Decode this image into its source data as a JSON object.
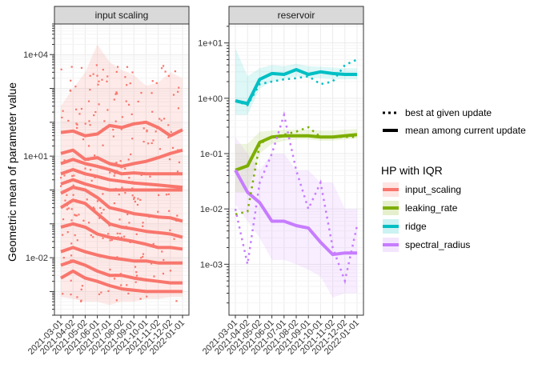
{
  "chart_data": {
    "type": "line",
    "ylabel": "Geometric mean of parameter value",
    "xlabel": "",
    "y_scale": "log",
    "x_ticks": [
      "2021-03-01",
      "2021-04-02",
      "2021-05-02",
      "2021-06-01",
      "2021-07-01",
      "2021-08-02",
      "2021-09-01",
      "2021-10-01",
      "2021-11-02",
      "2021-12-02",
      "2022-01-01"
    ],
    "panels": [
      {
        "strip": "input scaling",
        "y_ticks": [
          {
            "label": "1e-02",
            "value": 0.01
          },
          {
            "label": "1e+01",
            "value": 10
          },
          {
            "label": "1e+04",
            "value": 10000
          }
        ],
        "ylim": [
          0.0002,
          80000
        ],
        "band": {
          "lower": [
            0.0007,
            0.0006,
            0.0005,
            0.0005,
            0.0004,
            0.0005,
            0.0005,
            0.0006,
            0.0006,
            0.0007,
            0.0007
          ],
          "upper": [
            300,
            1000,
            3000,
            20000,
            6000,
            3500,
            2500,
            1200,
            1500,
            3000,
            2000
          ]
        },
        "series": [
          {
            "values": [
              50,
              55,
              40,
              45,
              80,
              70,
              90,
              100,
              70,
              40,
              60
            ]
          },
          {
            "values": [
              12,
              15,
              8,
              9,
              6,
              5,
              6,
              7,
              9,
              12,
              15
            ]
          },
          {
            "values": [
              6,
              8,
              6,
              5,
              4,
              3,
              3.2,
              3,
              3,
              3,
              3
            ]
          },
          {
            "values": [
              3,
              4,
              3,
              2.5,
              2,
              1.8,
              1.6,
              1.5,
              1.4,
              1.3,
              1.2
            ]
          },
          {
            "values": [
              1.5,
              2,
              1.5,
              1.2,
              1,
              1,
              1,
              1,
              1,
              1,
              1
            ]
          },
          {
            "values": [
              0.8,
              1.2,
              1,
              0.6,
              0.3,
              0.25,
              0.2,
              0.18,
              0.16,
              0.15,
              0.12
            ]
          },
          {
            "values": [
              0.3,
              0.5,
              0.4,
              0.2,
              0.1,
              0.08,
              0.07,
              0.06,
              0.055,
              0.05,
              0.04
            ]
          },
          {
            "values": [
              0.08,
              0.1,
              0.08,
              0.05,
              0.04,
              0.035,
              0.03,
              0.025,
              0.02,
              0.02,
              0.018
            ]
          },
          {
            "values": [
              0.015,
              0.02,
              0.015,
              0.012,
              0.01,
              0.009,
              0.008,
              0.008,
              0.007,
              0.007,
              0.007
            ]
          },
          {
            "values": [
              0.006,
              0.008,
              0.006,
              0.004,
              0.003,
              0.003,
              0.0025,
              0.0022,
              0.002,
              0.0018,
              0.0018
            ]
          },
          {
            "values": [
              0.0025,
              0.004,
              0.0025,
              0.002,
              0.0015,
              0.0012,
              0.0011,
              0.001,
              0.001,
              0.001,
              0.001
            ]
          }
        ]
      },
      {
        "strip": "reservoir",
        "y_ticks": [
          {
            "label": "1e-03",
            "value": 0.001
          },
          {
            "label": "1e-02",
            "value": 0.01
          },
          {
            "label": "1e-01",
            "value": 0.1
          },
          {
            "label": "1e+00",
            "value": 1
          },
          {
            "label": "1e+01",
            "value": 10
          }
        ],
        "ylim": [
          0.00012,
          22
        ],
        "series": [
          {
            "name": "ridge",
            "values": [
              0.9,
              0.8,
              2.2,
              2.8,
              2.7,
              3.3,
              2.7,
              3.0,
              2.8,
              2.7,
              2.7
            ],
            "best": [
              0.9,
              0.75,
              1.8,
              2.0,
              2.2,
              2.3,
              2.5,
              1.8,
              2.0,
              4.0,
              5.0
            ],
            "lower": [
              0.5,
              0.5,
              1.5,
              2.0,
              2.2,
              2.5,
              2.3,
              2.3,
              2.2,
              2.2,
              2.2
            ],
            "upper": [
              8,
              2.5,
              3.5,
              4,
              3.8,
              4.2,
              3.8,
              3.7,
              3.6,
              3.5,
              3.5
            ]
          },
          {
            "name": "leaking_rate",
            "values": [
              0.05,
              0.06,
              0.16,
              0.2,
              0.21,
              0.21,
              0.21,
              0.2,
              0.2,
              0.21,
              0.22
            ],
            "best": [
              0.008,
              0.009,
              0.15,
              0.2,
              0.22,
              0.25,
              0.3,
              0.2,
              0.2,
              0.2,
              0.2
            ],
            "lower": [
              0.02,
              0.02,
              0.1,
              0.15,
              0.17,
              0.18,
              0.18,
              0.17,
              0.17,
              0.18,
              0.19
            ],
            "upper": [
              0.15,
              0.15,
              0.25,
              0.26,
              0.27,
              0.27,
              0.27,
              0.26,
              0.26,
              0.27,
              0.28
            ]
          },
          {
            "name": "spectral_radius",
            "values": [
              0.05,
              0.02,
              0.013,
              0.006,
              0.006,
              0.005,
              0.0045,
              0.0025,
              0.0015,
              0.0016,
              0.0016
            ],
            "best": [
              0.01,
              0.001,
              0.03,
              0.1,
              0.5,
              0.05,
              0.01,
              0.03,
              0.002,
              0.0005,
              0.005
            ],
            "lower": [
              0.012,
              0.006,
              0.003,
              0.0012,
              0.0012,
              0.001,
              0.0008,
              0.0006,
              0.00025,
              0.0003,
              0.0003
            ],
            "upper": [
              0.2,
              0.1,
              0.05,
              0.1,
              0.1,
              0.05,
              0.05,
              0.03,
              0.03,
              0.01,
              0.01
            ]
          }
        ]
      }
    ],
    "legend": {
      "linetype": [
        {
          "label": "best at given update",
          "style": "dotted"
        },
        {
          "label": "mean among current update",
          "style": "solid"
        }
      ],
      "title": "HP with IQR",
      "items": [
        {
          "label": "input_scaling",
          "color": "#F8766D"
        },
        {
          "label": "leaking_rate",
          "color": "#7CAE00"
        },
        {
          "label": "ridge",
          "color": "#00BFC4"
        },
        {
          "label": "spectral_radius",
          "color": "#C77CFF"
        }
      ]
    }
  }
}
